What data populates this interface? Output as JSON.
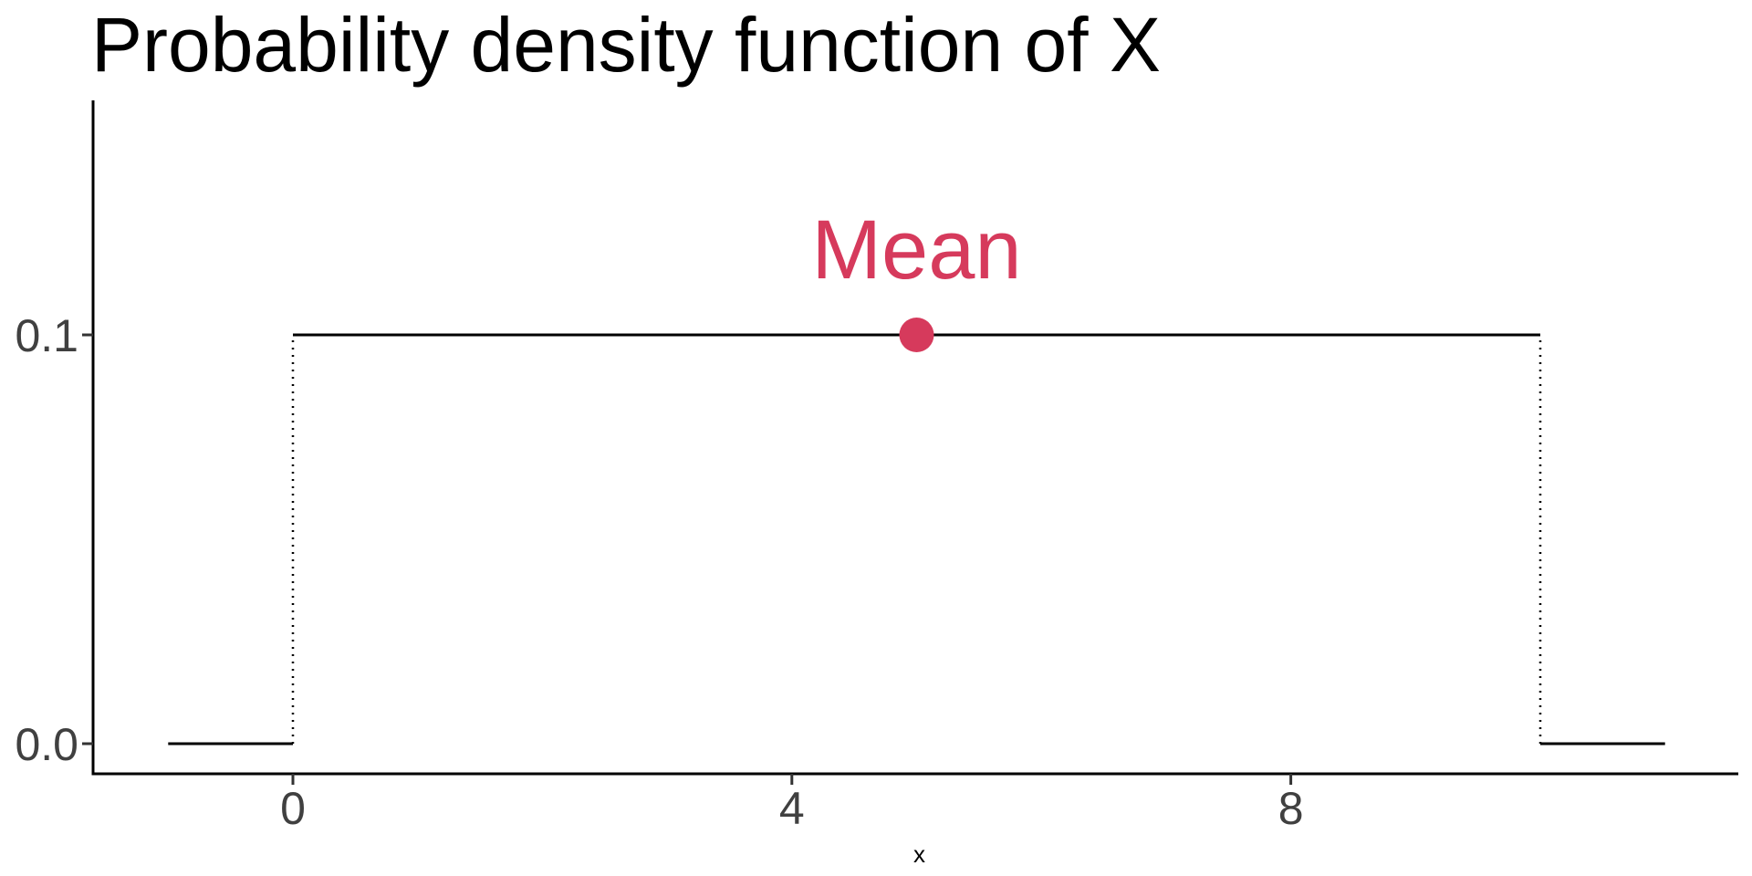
{
  "chart_data": {
    "type": "line",
    "title": "Probability density function of X",
    "xlabel": "x",
    "ylabel": "",
    "xlim": [
      -1,
      11
    ],
    "ylim": [
      0,
      0.15
    ],
    "x_ticks": [
      0,
      4,
      8
    ],
    "x_tick_labels": [
      "0",
      "4",
      "8"
    ],
    "y_ticks": [
      0.0,
      0.1
    ],
    "y_tick_labels": [
      "0.0",
      "0.1"
    ],
    "grid": false,
    "legend": "none",
    "series": [
      {
        "segments": [
          {
            "x": [
              -1,
              0
            ],
            "y": [
              0,
              0
            ]
          },
          {
            "x": [
              0,
              10
            ],
            "y": [
              0.1,
              0.1
            ]
          },
          {
            "x": [
              10,
              11
            ],
            "y": [
              0,
              0
            ]
          }
        ]
      }
    ],
    "discontinuities": [
      {
        "x": 0,
        "y": [
          0,
          0.1
        ]
      },
      {
        "x": 10,
        "y": [
          0,
          0.1
        ]
      }
    ],
    "annotations": [
      {
        "label": "Mean",
        "x": 5,
        "y": 0.1,
        "color": "#D63A5C"
      }
    ],
    "colors": {
      "line": "#000000",
      "accent": "#D63A5C"
    }
  }
}
